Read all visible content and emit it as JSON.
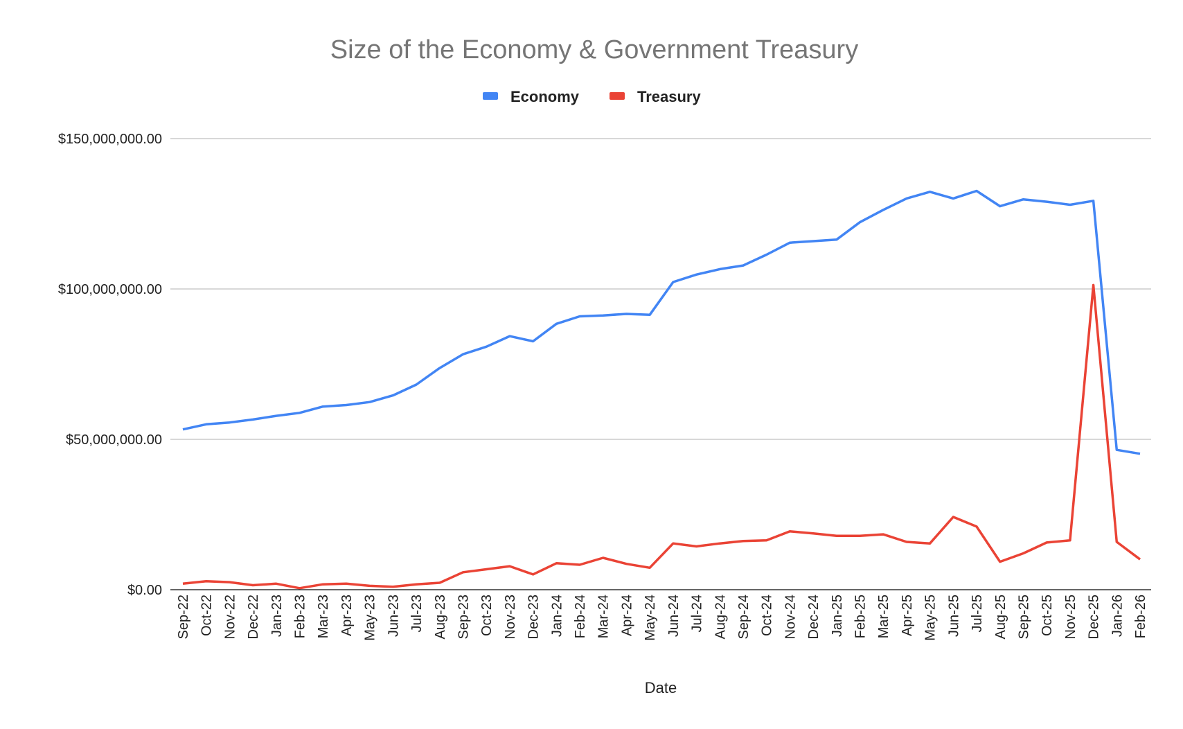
{
  "chart_data": {
    "type": "line",
    "title": "Size of the Economy & Government Treasury",
    "xlabel": "Date",
    "ylabel": "",
    "ylim": [
      0,
      150000000
    ],
    "yticks": [
      0,
      50000000,
      100000000,
      150000000
    ],
    "ytick_labels": [
      "$0.00",
      "$50,000,000.00",
      "$100,000,000.00",
      "$150,000,000.00"
    ],
    "grid": true,
    "legend_position": "top-center",
    "categories": [
      "Sep-22",
      "Oct-22",
      "Nov-22",
      "Dec-22",
      "Jan-23",
      "Feb-23",
      "Mar-23",
      "Apr-23",
      "May-23",
      "Jun-23",
      "Jul-23",
      "Aug-23",
      "Sep-23",
      "Oct-23",
      "Nov-23",
      "Dec-23",
      "Jan-24",
      "Feb-24",
      "Mar-24",
      "Apr-24",
      "May-24",
      "Jun-24",
      "Jul-24",
      "Aug-24",
      "Sep-24",
      "Oct-24",
      "Nov-24",
      "Dec-24",
      "Jan-25",
      "Feb-25",
      "Mar-25",
      "Apr-25",
      "May-25",
      "Jun-25",
      "Jul-25",
      "Aug-25",
      "Sep-25",
      "Oct-25",
      "Nov-25",
      "Dec-25",
      "Jan-26",
      "Feb-26"
    ],
    "series": [
      {
        "name": "Economy",
        "color": "#4285f4",
        "values": [
          53300000,
          55000000,
          55600000,
          56600000,
          57800000,
          58800000,
          60900000,
          61400000,
          62400000,
          64600000,
          68200000,
          73700000,
          78300000,
          80800000,
          84300000,
          82600000,
          88400000,
          90900000,
          91200000,
          91700000,
          91400000,
          102300000,
          104800000,
          106600000,
          107800000,
          111400000,
          115400000,
          115900000,
          116400000,
          122200000,
          126300000,
          130100000,
          132300000,
          130100000,
          132600000,
          127500000,
          129800000,
          129000000,
          128000000,
          129300000,
          46500000,
          45200000
        ]
      },
      {
        "name": "Treasury",
        "color": "#ea4335",
        "values": [
          2000000,
          2800000,
          2500000,
          1500000,
          2000000,
          500000,
          1800000,
          2000000,
          1300000,
          1000000,
          1800000,
          2300000,
          5800000,
          6800000,
          7800000,
          5100000,
          8800000,
          8300000,
          10600000,
          8600000,
          7300000,
          15400000,
          14400000,
          15400000,
          16200000,
          16400000,
          19400000,
          18700000,
          17900000,
          17900000,
          18400000,
          15900000,
          15400000,
          24200000,
          21000000,
          9300000,
          12100000,
          15700000,
          16400000,
          101300000,
          15900000,
          10100000
        ]
      }
    ]
  }
}
